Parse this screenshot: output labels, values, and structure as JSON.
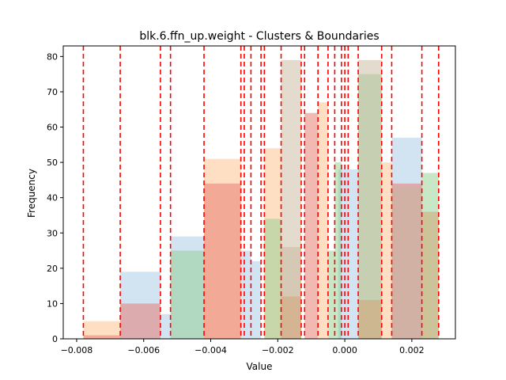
{
  "chart_data": {
    "type": "histogram",
    "title": "blk.6.ffn_up.weight - Clusters & Boundaries",
    "xlabel": "Value",
    "ylabel": "Frequency",
    "xlim": [
      -0.0084,
      0.0033
    ],
    "ylim": [
      0,
      83
    ],
    "xticks": [
      -0.008,
      -0.006,
      -0.004,
      -0.002,
      0.0,
      0.002
    ],
    "xtick_labels": [
      "−0.008",
      "−0.006",
      "−0.004",
      "−0.002",
      "0.000",
      "0.002"
    ],
    "yticks": [
      0,
      10,
      20,
      30,
      40,
      50,
      60,
      70,
      80
    ],
    "ytick_labels": [
      "0",
      "10",
      "20",
      "30",
      "40",
      "50",
      "60",
      "70",
      "80"
    ],
    "grid": false,
    "boundaries": [
      -0.0078,
      -0.0067,
      -0.0055,
      -0.0052,
      -0.0042,
      -0.0031,
      -0.003,
      -0.0028,
      -0.0025,
      -0.0024,
      -0.0019,
      -0.0013,
      -0.0012,
      -0.0008,
      -0.0005,
      -0.0003,
      -0.0001,
      0.0,
      0.0001,
      0.0004,
      0.0011,
      0.0014,
      0.0023,
      0.0028
    ],
    "boundary_color": "#ff0000",
    "series": [
      {
        "color": "#a6c8e6",
        "bars": [
          {
            "x0": -0.0067,
            "x1": -0.0055,
            "value": 19
          },
          {
            "x0": -0.0055,
            "x1": -0.0052,
            "value": 7
          },
          {
            "x0": -0.0052,
            "x1": -0.0042,
            "value": 29
          },
          {
            "x0": -0.0031,
            "x1": -0.0028,
            "value": 25
          },
          {
            "x0": -0.0028,
            "x1": -0.0025,
            "value": 22
          },
          {
            "x0": -0.0002,
            "x1": 0.0004,
            "value": 48
          },
          {
            "x0": 0.0014,
            "x1": 0.0023,
            "value": 57
          }
        ]
      },
      {
        "color": "#fdbf8a",
        "bars": [
          {
            "x0": -0.0078,
            "x1": -0.0067,
            "value": 5
          },
          {
            "x0": -0.0042,
            "x1": -0.0031,
            "value": 51
          },
          {
            "x0": -0.0024,
            "x1": -0.0019,
            "value": 54
          },
          {
            "x0": -0.0008,
            "x1": -0.0005,
            "value": 67
          },
          {
            "x0": 0.0011,
            "x1": 0.0014,
            "value": 50
          }
        ]
      },
      {
        "color": "#8fcf8f",
        "bars": [
          {
            "x0": -0.0052,
            "x1": -0.0042,
            "value": 25
          },
          {
            "x0": -0.0024,
            "x1": -0.0019,
            "value": 34
          },
          {
            "x0": -0.0005,
            "x1": -0.0003,
            "value": 25
          },
          {
            "x0": -0.0003,
            "x1": -0.0001,
            "value": 50
          },
          {
            "x0": 0.0004,
            "x1": 0.0011,
            "value": 75
          },
          {
            "x0": 0.0023,
            "x1": 0.0028,
            "value": 47
          }
        ]
      },
      {
        "color": "#e67468",
        "bars": [
          {
            "x0": -0.0078,
            "x1": -0.0067,
            "value": 1
          },
          {
            "x0": -0.0067,
            "x1": -0.0055,
            "value": 10
          },
          {
            "x0": -0.0042,
            "x1": -0.0031,
            "value": 44
          },
          {
            "x0": -0.0012,
            "x1": -0.0008,
            "value": 64
          },
          {
            "x0": 0.0014,
            "x1": 0.0023,
            "value": 44
          }
        ]
      },
      {
        "color": "#c8b89e",
        "bars": [
          {
            "x0": -0.0019,
            "x1": -0.0013,
            "value": 79
          },
          {
            "x0": -0.0019,
            "x1": -0.0013,
            "value": 26
          },
          {
            "x0": 0.0004,
            "x1": 0.0011,
            "value": 79
          },
          {
            "x0": 0.0014,
            "x1": 0.0023,
            "value": 43
          }
        ]
      },
      {
        "color": "#d4a070",
        "bars": [
          {
            "x0": -0.0019,
            "x1": -0.0013,
            "value": 12
          },
          {
            "x0": 0.0004,
            "x1": 0.0011,
            "value": 11
          },
          {
            "x0": 0.0023,
            "x1": 0.0028,
            "value": 36
          }
        ]
      }
    ]
  }
}
